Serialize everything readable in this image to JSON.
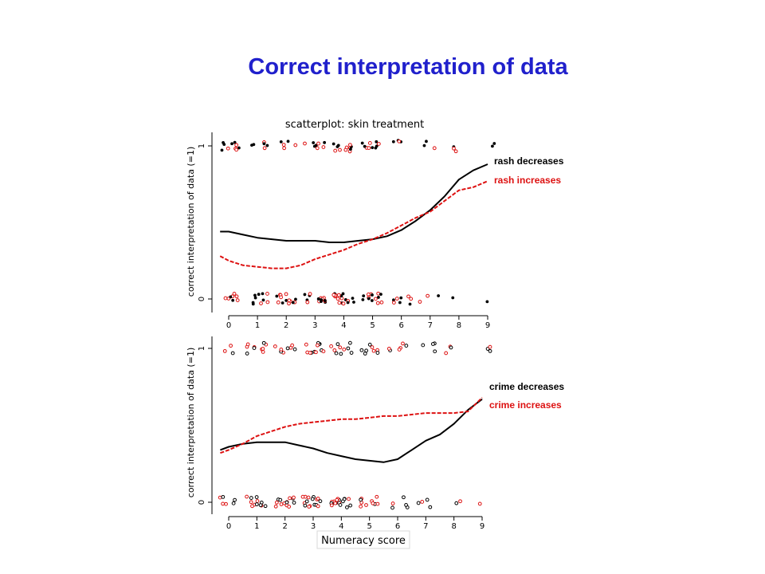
{
  "slide": {
    "title": "Correct interpretation of data"
  },
  "colors": {
    "title": "#2020cc",
    "series_black": "#000000",
    "series_red": "#dd1111"
  },
  "chart_data": [
    {
      "type": "scatter",
      "title": "scatterplot: skin treatment",
      "xlabel": "",
      "ylabel": "correct interpretation of data (=1)",
      "xlim": [
        0,
        9
      ],
      "ylim": [
        0,
        1
      ],
      "x_ticks": [
        "0",
        "1",
        "2",
        "3",
        "4",
        "5",
        "6",
        "7",
        "8",
        "9"
      ],
      "y_ticks": [
        "0",
        "1"
      ],
      "series": [
        {
          "name": "rash decreases",
          "color": "#000000",
          "style": "solid",
          "x": [
            -0.3,
            0,
            0.5,
            1,
            1.5,
            2,
            2.5,
            3,
            3.5,
            4,
            4.5,
            5,
            5.5,
            6,
            6.5,
            7,
            7.5,
            8,
            8.5,
            9
          ],
          "y": [
            0.44,
            0.44,
            0.42,
            0.4,
            0.39,
            0.38,
            0.38,
            0.38,
            0.37,
            0.37,
            0.38,
            0.39,
            0.41,
            0.45,
            0.51,
            0.58,
            0.67,
            0.78,
            0.84,
            0.88
          ]
        },
        {
          "name": "rash increases",
          "color": "#dd1111",
          "style": "dashed",
          "x": [
            -0.3,
            0,
            0.5,
            1,
            1.5,
            2,
            2.5,
            3,
            3.5,
            4,
            4.5,
            5,
            5.5,
            6,
            6.5,
            7,
            7.5,
            8,
            8.5,
            9
          ],
          "y": [
            0.28,
            0.25,
            0.22,
            0.21,
            0.2,
            0.2,
            0.22,
            0.26,
            0.29,
            0.32,
            0.36,
            0.39,
            0.43,
            0.48,
            0.53,
            0.57,
            0.64,
            0.71,
            0.73,
            0.77
          ]
        }
      ]
    },
    {
      "type": "scatter",
      "title": "",
      "xlabel": "Numeracy score",
      "ylabel": "correct interpretation of data (=1)",
      "xlim": [
        0,
        9
      ],
      "ylim": [
        0,
        1
      ],
      "x_ticks": [
        "0",
        "1",
        "2",
        "3",
        "4",
        "5",
        "6",
        "7",
        "8",
        "9"
      ],
      "y_ticks": [
        "0",
        "1"
      ],
      "series": [
        {
          "name": "crime decreases",
          "color": "#000000",
          "style": "solid",
          "x": [
            -0.3,
            0,
            0.5,
            1,
            1.5,
            2,
            2.5,
            3,
            3.5,
            4,
            4.5,
            5,
            5.5,
            6,
            6.5,
            7,
            7.5,
            8,
            8.5,
            9
          ],
          "y": [
            0.34,
            0.36,
            0.38,
            0.39,
            0.39,
            0.39,
            0.37,
            0.35,
            0.32,
            0.3,
            0.28,
            0.27,
            0.26,
            0.28,
            0.34,
            0.4,
            0.44,
            0.51,
            0.6,
            0.67
          ]
        },
        {
          "name": "crime increases",
          "color": "#dd1111",
          "style": "dashed",
          "x": [
            -0.3,
            0,
            0.5,
            1,
            1.5,
            2,
            2.5,
            3,
            3.5,
            4,
            4.5,
            5,
            5.5,
            6,
            6.5,
            7,
            7.5,
            8,
            8.5,
            9
          ],
          "y": [
            0.32,
            0.34,
            0.38,
            0.43,
            0.46,
            0.49,
            0.51,
            0.52,
            0.53,
            0.54,
            0.54,
            0.55,
            0.56,
            0.56,
            0.57,
            0.58,
            0.58,
            0.58,
            0.59,
            0.68
          ]
        }
      ]
    }
  ]
}
